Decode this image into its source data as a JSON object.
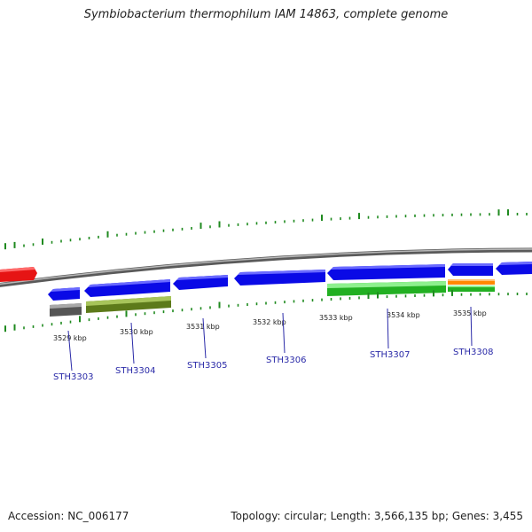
{
  "title": "Symbiobacterium thermophilum IAM 14863, complete genome",
  "footer": {
    "accession": "Accession: NC_006177",
    "topology": "Topology: circular; Length: 3,566,135 bp; Genes: 3,455"
  },
  "colors": {
    "backbone": "#8c8c8c",
    "gene_blue": "#0a0ae6",
    "gene_red": "#e61414",
    "gc_ticks": "#1f8a1f",
    "label_blue": "#2a2aa8",
    "cog_gray": "#666666",
    "cog_olive": "#6b8c1f",
    "cog_green": "#33cc33",
    "cog_orange": "#ff8800"
  },
  "kbp_labels": [
    "3529 kbp",
    "3530 kbp",
    "3531 kbp",
    "3532 kbp",
    "3533 kbp",
    "3534 kbp",
    "3535 kbp"
  ],
  "gene_labels": [
    "STH3303",
    "STH3304",
    "STH3305",
    "STH3306",
    "STH3307",
    "STH3308"
  ]
}
